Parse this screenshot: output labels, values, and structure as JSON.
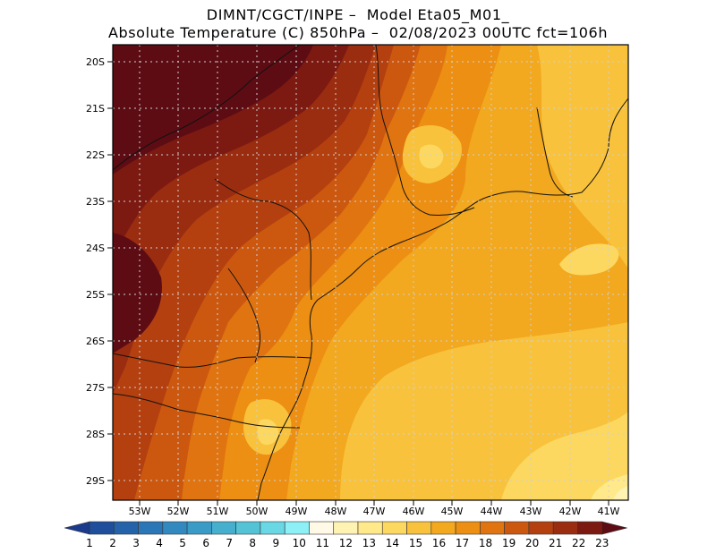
{
  "header": {
    "line1": "DIMNT/CGCT/INPE –  Model Eta05_M01_",
    "line2": "Absolute Temperature (C) 850hPa –  02/08/2023 00UTC fct=106h"
  },
  "axes": {
    "lat_labels": [
      "20S",
      "21S",
      "22S",
      "23S",
      "24S",
      "25S",
      "26S",
      "27S",
      "28S",
      "29S"
    ],
    "lon_labels": [
      "53W",
      "52W",
      "51W",
      "50W",
      "49W",
      "48W",
      "47W",
      "46W",
      "45W",
      "44W",
      "43W",
      "42W",
      "41W"
    ]
  },
  "colorbar": {
    "labels": [
      "1",
      "2",
      "3",
      "4",
      "5",
      "6",
      "7",
      "8",
      "9",
      "10",
      "11",
      "12",
      "13",
      "14",
      "15",
      "16",
      "17",
      "18",
      "19",
      "20",
      "21",
      "22",
      "23"
    ],
    "colors": [
      "#1a3a8c",
      "#1f4e9c",
      "#2462aa",
      "#2a76b6",
      "#3189bf",
      "#3a9cc6",
      "#46afcd",
      "#55c3d6",
      "#6ad8e4",
      "#8cf0f6",
      "#fff9e6",
      "#fff3b3",
      "#ffe98a",
      "#fcd860",
      "#f8c23c",
      "#f2a81f",
      "#ec8f12",
      "#e07410",
      "#cc5810",
      "#b44010",
      "#9a2c10",
      "#7c1a12",
      "#5e0c14"
    ]
  },
  "map": {
    "field": "Absolute Temperature (C)",
    "level": "850hPa",
    "lat_range": [
      20,
      29.4
    ],
    "lon_range": [
      53.7,
      40.7
    ]
  }
}
